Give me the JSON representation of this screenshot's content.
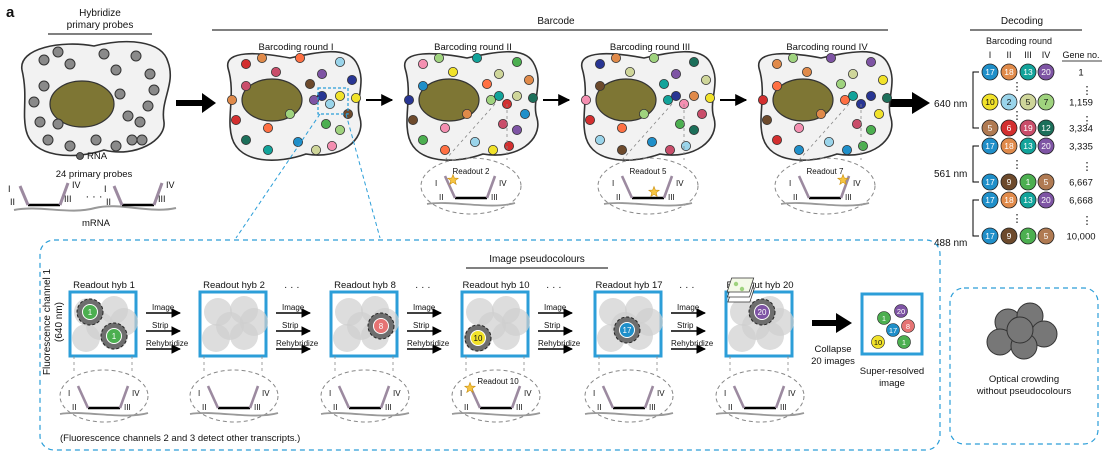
{
  "panel_label": "a",
  "hybridize": {
    "title_line1": "Hybridize",
    "title_line2": "primary probes",
    "rna_label": "RNA",
    "probes_label": "24 primary probes",
    "dots": "· · ·",
    "mrna_label": "mRNA",
    "roman": [
      "I",
      "II",
      "III",
      "IV"
    ]
  },
  "barcode": {
    "title": "Barcode",
    "rounds": [
      "Barcoding round I",
      "Barcoding round II",
      "Barcoding round III",
      "Barcoding round IV"
    ],
    "readouts": [
      "Readout 2",
      "Readout 5",
      "Readout 7"
    ]
  },
  "decoding": {
    "title": "Decoding",
    "subtitle": "Barcoding round",
    "col_labels": [
      "I",
      "II",
      "III",
      "IV"
    ],
    "gene_header": "Gene no.",
    "channels": [
      "640 nm",
      "561 nm",
      "488 nm"
    ],
    "rows": [
      {
        "codes": [
          "17",
          "18",
          "13",
          "20"
        ],
        "colors": [
          "#1f8fc9",
          "#e08a4a",
          "#12a39a",
          "#7e54a4"
        ],
        "gene": "1"
      },
      {
        "codes": [
          "10",
          "2",
          "5",
          "7"
        ],
        "colors": [
          "#f1e22a",
          "#9ad4ea",
          "#cfd69a",
          "#9fd37e"
        ],
        "gene": "1,159"
      },
      {
        "codes": [
          "5",
          "6",
          "19",
          "12"
        ],
        "colors": [
          "#b07a52",
          "#d32f2f",
          "#c94d6a",
          "#1c6f5a"
        ],
        "gene": "3,334"
      },
      {
        "codes": [
          "17",
          "18",
          "13",
          "20"
        ],
        "colors": [
          "#1f8fc9",
          "#e08a4a",
          "#12a39a",
          "#7e54a4"
        ],
        "gene": "3,335"
      },
      {
        "codes": [
          "17",
          "9",
          "1",
          "5"
        ],
        "colors": [
          "#1f8fc9",
          "#6d4a2c",
          "#4caf50",
          "#b07a52"
        ],
        "gene": "6,667"
      },
      {
        "codes": [
          "17",
          "18",
          "13",
          "20"
        ],
        "colors": [
          "#1f8fc9",
          "#e08a4a",
          "#12a39a",
          "#7e54a4"
        ],
        "gene": "6,668"
      },
      {
        "codes": [
          "17",
          "9",
          "1",
          "5"
        ],
        "colors": [
          "#1f8fc9",
          "#6d4a2c",
          "#4caf50",
          "#b07a52"
        ],
        "gene": "10,000"
      }
    ],
    "vdots": "⋮"
  },
  "pseudocolor": {
    "section_title": "Image pseudocolours",
    "channel_label_line1": "Fluorescence channel 1",
    "channel_label_line2": "(640 nm)",
    "hybs": [
      {
        "title": "Readout hyb 1",
        "number": "1",
        "color": "#4caf50"
      },
      {
        "title": "Readout hyb 2",
        "number": "",
        "color": ""
      },
      {
        "title": "Readout hyb 8",
        "number": "8",
        "color": "#e57373"
      },
      {
        "title": "Readout hyb 10",
        "number": "10",
        "color": "#f1e22a"
      },
      {
        "title": "Readout hyb 17",
        "number": "17",
        "color": "#1f8fc9"
      },
      {
        "title": "Readout hyb 20",
        "number": "20",
        "color": "#7e54a4"
      }
    ],
    "step_labels": [
      "Image",
      "Strip",
      "Rehybridize"
    ],
    "gap_dots": "· · ·",
    "collapse_line1": "Collapse",
    "collapse_line2": "20 images",
    "superres_line1": "Super-resolved",
    "superres_line2": "image",
    "readout10": "Readout 10",
    "footnote": "(Fluorescence channels 2 and 3 detect other transcripts.)",
    "superres_spots": [
      {
        "n": "1",
        "color": "#4caf50"
      },
      {
        "n": "20",
        "color": "#7e54a4"
      },
      {
        "n": "17",
        "color": "#1f8fc9"
      },
      {
        "n": "8",
        "color": "#e57373"
      },
      {
        "n": "10",
        "color": "#f1e22a"
      },
      {
        "n": "1",
        "color": "#4caf50"
      }
    ]
  },
  "crowding": {
    "line1": "Optical crowding",
    "line2": "without pseudocolours"
  },
  "colors": {
    "accent": "#2c9ed8",
    "nucleus": "#7e7634",
    "cell_fill": "#f2f2f2",
    "arrow": "#000000",
    "star": "#f6c440"
  }
}
